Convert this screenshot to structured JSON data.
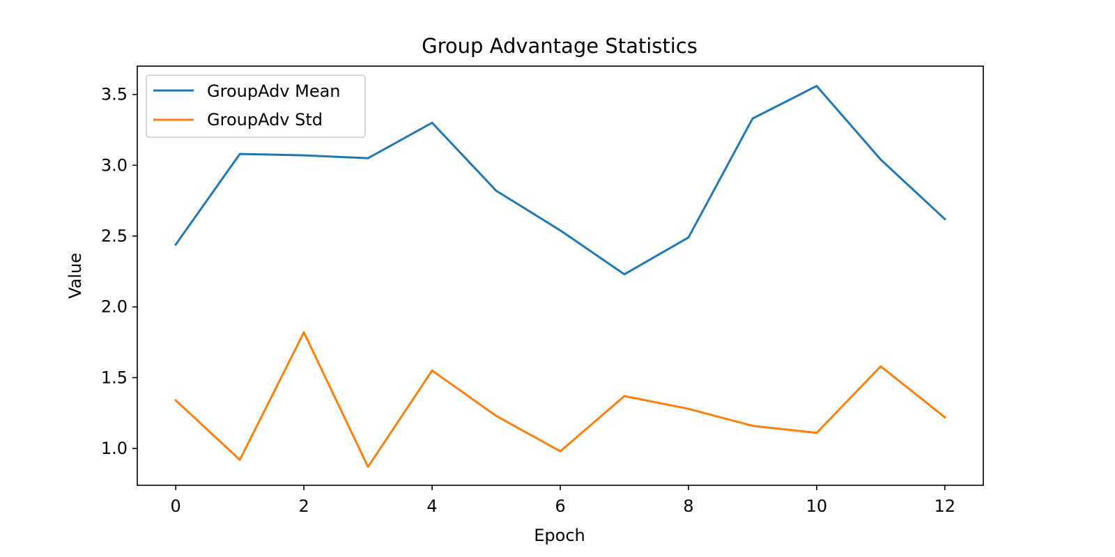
{
  "chart_data": {
    "type": "line",
    "title": "Group Advantage Statistics",
    "xlabel": "Epoch",
    "ylabel": "Value",
    "x": [
      0,
      1,
      2,
      3,
      4,
      5,
      6,
      7,
      8,
      9,
      10,
      11,
      12
    ],
    "xlim": [
      -0.6,
      12.6
    ],
    "ylim": [
      0.74,
      3.7
    ],
    "xticks": [
      "0",
      "2",
      "4",
      "6",
      "8",
      "10",
      "12"
    ],
    "yticks": [
      "1.0",
      "1.5",
      "2.0",
      "2.5",
      "3.0",
      "3.5"
    ],
    "grid": false,
    "legend_position": "upper-left",
    "series": [
      {
        "name": "GroupAdv Mean",
        "color": "#1f77b4",
        "values": [
          2.44,
          3.08,
          3.07,
          3.05,
          3.3,
          2.82,
          2.54,
          2.23,
          2.49,
          3.33,
          3.56,
          3.04,
          2.62
        ]
      },
      {
        "name": "GroupAdv Std",
        "color": "#ff7f0e",
        "values": [
          1.34,
          0.92,
          1.82,
          0.87,
          1.55,
          1.23,
          0.98,
          1.37,
          1.28,
          1.16,
          1.11,
          1.58,
          1.22
        ]
      }
    ]
  }
}
